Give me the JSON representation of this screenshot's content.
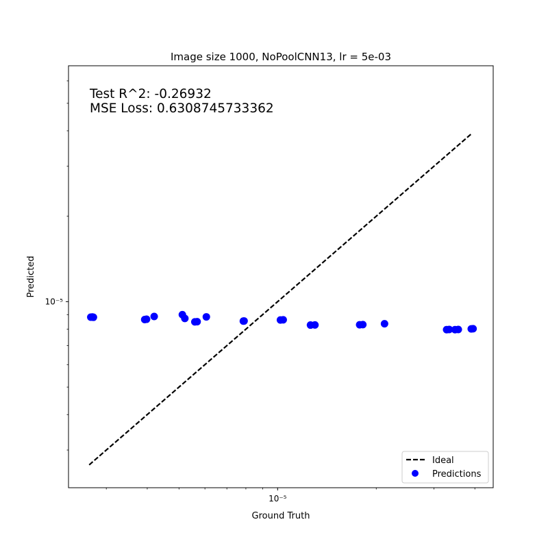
{
  "chart_data": {
    "type": "scatter",
    "title": "Image size 1000, NoPoolCNN13, lr = 5e-03",
    "xlabel": "Ground Truth",
    "ylabel": "Predicted",
    "xscale": "log",
    "yscale": "log",
    "xlim": [
      2.3e-06,
      4.55e-05
    ],
    "ylim": [
      2.21e-06,
      6.78e-05
    ],
    "grid": false,
    "x_ticks": [
      {
        "value": 1e-05,
        "label": "10⁻⁵"
      }
    ],
    "y_ticks": [
      {
        "value": 1e-05,
        "label": "10⁻⁵"
      }
    ],
    "annotation": [
      "Test R^2: -0.26932",
      "MSE Loss: 0.6308745733362"
    ],
    "legend": {
      "position": "bottom-right",
      "entries": [
        {
          "label": "Ideal",
          "style": "dashed-line",
          "color": "#000000"
        },
        {
          "label": "Predictions",
          "style": "marker",
          "color": "#0000ff"
        }
      ]
    },
    "ideal_line": {
      "name": "Ideal",
      "x": [
        2.66e-06,
        3.9e-05
      ],
      "y": [
        2.66e-06,
        3.9e-05
      ]
    },
    "series": [
      {
        "name": "Predictions",
        "color": "#0000ff",
        "points": [
          {
            "x": 2.69e-06,
            "y": 8.82e-06
          },
          {
            "x": 2.72e-06,
            "y": 8.83e-06
          },
          {
            "x": 2.74e-06,
            "y": 8.81e-06
          },
          {
            "x": 3.93e-06,
            "y": 8.65e-06
          },
          {
            "x": 3.98e-06,
            "y": 8.67e-06
          },
          {
            "x": 4.2e-06,
            "y": 8.87e-06
          },
          {
            "x": 5.12e-06,
            "y": 9e-06
          },
          {
            "x": 5.21e-06,
            "y": 8.73e-06
          },
          {
            "x": 5.59e-06,
            "y": 8.49e-06
          },
          {
            "x": 5.68e-06,
            "y": 8.5e-06
          },
          {
            "x": 6.06e-06,
            "y": 8.84e-06
          },
          {
            "x": 7.86e-06,
            "y": 8.54e-06
          },
          {
            "x": 7.9e-06,
            "y": 8.55e-06
          },
          {
            "x": 1.02e-05,
            "y": 8.62e-06
          },
          {
            "x": 1.04e-05,
            "y": 8.63e-06
          },
          {
            "x": 1.26e-05,
            "y": 8.27e-06
          },
          {
            "x": 1.3e-05,
            "y": 8.28e-06
          },
          {
            "x": 1.78e-05,
            "y": 8.29e-06
          },
          {
            "x": 1.82e-05,
            "y": 8.3e-06
          },
          {
            "x": 2.12e-05,
            "y": 8.36e-06
          },
          {
            "x": 3.28e-05,
            "y": 7.97e-06
          },
          {
            "x": 3.34e-05,
            "y": 7.98e-06
          },
          {
            "x": 3.48e-05,
            "y": 7.97e-06
          },
          {
            "x": 3.56e-05,
            "y": 7.98e-06
          },
          {
            "x": 3.9e-05,
            "y": 8.02e-06
          },
          {
            "x": 3.95e-05,
            "y": 8.03e-06
          }
        ]
      }
    ]
  }
}
